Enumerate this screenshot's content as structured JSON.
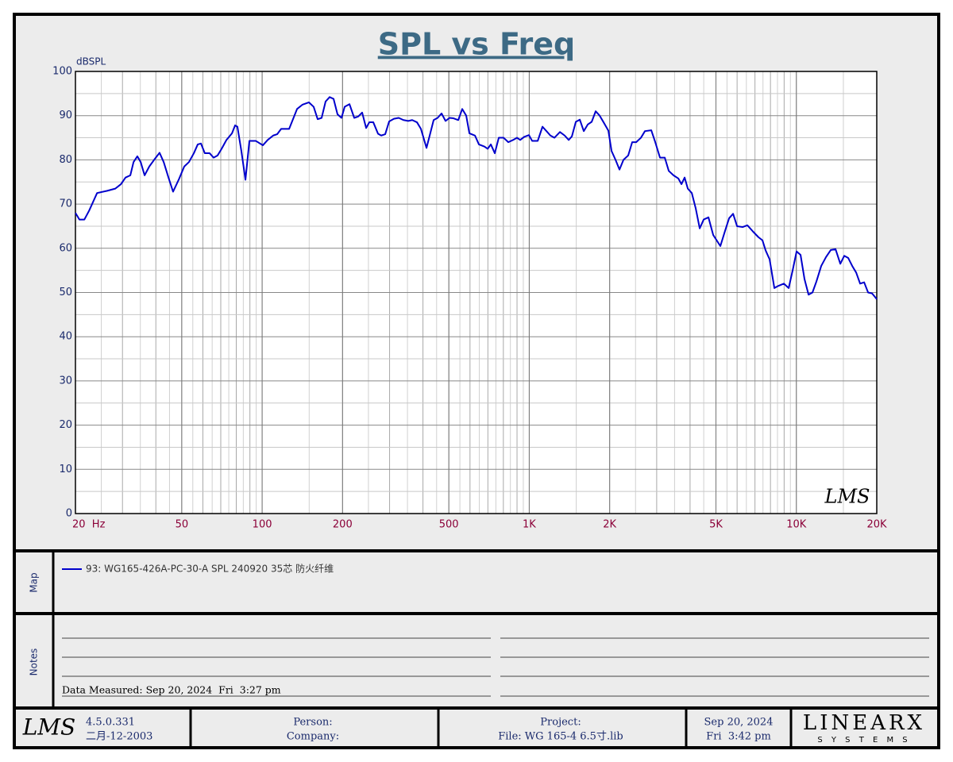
{
  "chart_data": {
    "type": "line",
    "title": "SPL vs Freq",
    "y_label": "dBSPL",
    "watermark": "LMS",
    "xscale": "log",
    "xlim": [
      20,
      20000
    ],
    "ylim": [
      0,
      100
    ],
    "xticks": [
      {
        "value": 20,
        "label": "20  Hz"
      },
      50,
      100,
      200,
      500,
      {
        "value": 1000,
        "label": "1K"
      },
      {
        "value": 2000,
        "label": "2K"
      },
      {
        "value": 5000,
        "label": "5K"
      },
      {
        "value": 10000,
        "label": "10K"
      },
      {
        "value": 20000,
        "label": "20K"
      }
    ],
    "yticks": [
      0,
      10,
      20,
      30,
      40,
      50,
      60,
      70,
      80,
      90,
      100
    ],
    "grid": true,
    "x": [
      20,
      20.7,
      21.6,
      22.5,
      24.1,
      26.3,
      28.2,
      29.6,
      30.8,
      32.1,
      33,
      34.1,
      35.1,
      36.3,
      37.8,
      39.4,
      41.3,
      42.8,
      44.6,
      46.4,
      48.7,
      51.1,
      53.2,
      55.5,
      57.4,
      59,
      61,
      63.6,
      65.8,
      68.1,
      70.5,
      73.5,
      77.1,
      79.2,
      80.8,
      83.6,
      86.6,
      89.6,
      94.6,
      100.6,
      104.9,
      110,
      113.8,
      117.8,
      126.2,
      135.1,
      141.7,
      149.7,
      155.9,
      161.4,
      167,
      172.8,
      178.9,
      185.1,
      191.5,
      198.2,
      203.7,
      212.3,
      221.2,
      228.9,
      236.8,
      245.1,
      251.9,
      260.7,
      271.6,
      279.1,
      288.9,
      298.9,
      311.5,
      324.5,
      338.1,
      352.3,
      364.6,
      379.9,
      393.1,
      412.4,
      423.9,
      438.6,
      453.9,
      469.7,
      486,
      503,
      520.5,
      542.3,
      561.2,
      580.8,
      596.9,
      626.2,
      648,
      679.8,
      698.7,
      718.1,
      743.1,
      769,
      801.3,
      834.8,
      869.8,
      900.1,
      925.1,
      957.4,
      997.5,
      1025,
      1076,
      1121,
      1160,
      1200,
      1242,
      1303,
      1357,
      1405,
      1444,
      1494,
      1546,
      1600,
      1656,
      1713,
      1773,
      1835,
      1898,
      1978,
      2033,
      2104,
      2177,
      2253,
      2347,
      2429,
      2514,
      2619,
      2711,
      2863,
      2963,
      3087,
      3217,
      3329,
      3468,
      3614,
      3714,
      3817,
      3923,
      4060,
      4201,
      4347,
      4499,
      4687,
      4884,
      5194,
      5412,
      5601,
      5796,
      5998,
      6293,
      6556,
      6878,
      7216,
      7467,
      7674,
      7941,
      8274,
      8562,
      8983,
      9360,
      9686,
      10020,
      10370,
      10730,
      11110,
      11490,
      11890,
      12390,
      12910,
      13450,
      14020,
      14610,
      15110,
      15640,
      16190,
      16750,
      17330,
      17940,
      18560,
      19210,
      20000
    ],
    "series": [
      {
        "name": "93: WG165-426A-PC-30-A SPL 240920 35芯 防火纤维",
        "color": "#0000cc",
        "values": [
          68,
          66.5,
          66.5,
          68.5,
          72.5,
          73,
          73.5,
          74.5,
          76,
          76.5,
          79.5,
          80.8,
          79.5,
          76.5,
          78.5,
          80,
          81.6,
          79.5,
          76,
          72.8,
          75.5,
          78.5,
          79.5,
          81.5,
          83.5,
          83.7,
          81.5,
          81.5,
          80.5,
          81,
          82.5,
          84.5,
          86,
          87.8,
          87.5,
          82,
          75.5,
          84.3,
          84.3,
          83.3,
          84.5,
          85.5,
          85.8,
          87,
          87,
          91.5,
          92.5,
          93,
          92,
          89.2,
          89.5,
          93.2,
          94.2,
          93.8,
          90.3,
          89.5,
          92,
          92.6,
          89.5,
          89.8,
          90.7,
          87.2,
          88.5,
          88.5,
          85.9,
          85.5,
          85.8,
          88.7,
          89.3,
          89.5,
          89,
          88.8,
          89,
          88.5,
          87,
          82.7,
          85.5,
          89,
          89.5,
          90.5,
          88.8,
          89.5,
          89.4,
          89,
          91.5,
          90,
          86,
          85.5,
          83.5,
          83,
          82.5,
          83.5,
          81.5,
          85,
          85,
          84,
          84.5,
          85,
          84.5,
          85.2,
          85.6,
          84.3,
          84.3,
          87.5,
          86.5,
          85.5,
          85,
          86.3,
          85.5,
          84.5,
          85.3,
          88.6,
          89.1,
          86.5,
          88,
          88.6,
          91,
          90,
          88.5,
          86.6,
          82,
          80,
          77.8,
          80,
          81,
          84,
          84,
          85,
          86.5,
          86.7,
          84,
          80.5,
          80.5,
          77.5,
          76.5,
          75.8,
          74.5,
          76,
          73.5,
          72.5,
          69,
          64.5,
          66.5,
          67,
          63,
          60.5,
          64,
          66.8,
          67.8,
          65,
          64.8,
          65.2,
          63.8,
          62.5,
          61.8,
          59.5,
          57.5,
          51,
          51.5,
          52,
          51,
          55,
          59.3,
          58.5,
          53,
          49.5,
          50,
          52.5,
          56,
          58,
          59.6,
          59.8,
          56.5,
          58.3,
          57.8,
          56,
          54.5,
          52,
          52.3,
          50,
          49.8,
          48.5
        ]
      }
    ]
  },
  "map": {
    "title": "Map"
  },
  "notes": {
    "title": "Notes",
    "data_measured": "Data Measured: Sep 20, 2024  Fri  3:27 pm"
  },
  "footer": {
    "logo": "LMS",
    "version": "4.5.0.331",
    "build_date": "二月-12-2003",
    "person": "Person:",
    "company": "Company:",
    "project": "Project:",
    "file": "File: WG 165-4 6.5寸.lib",
    "date": "Sep 20, 2024",
    "time": "Fri  3:42 pm",
    "brand": "LINEARX",
    "brand_sub": "S Y S T E M S"
  }
}
